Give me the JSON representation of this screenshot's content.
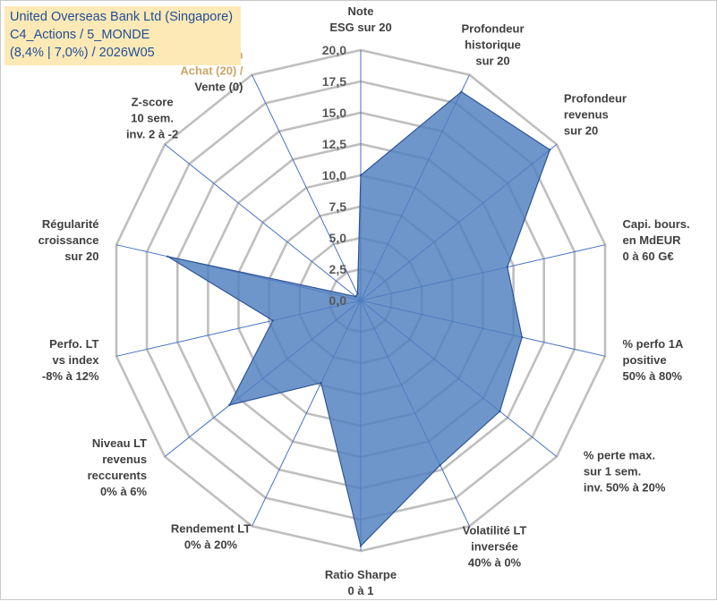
{
  "header": {
    "company": "United Overseas Bank Ltd (Singapore)",
    "portfolio": "C4_Actions / 5_MONDE",
    "stats": "(8,4% | 7,0%) / 2026W05"
  },
  "colors": {
    "fill": "#4f7fbf",
    "stroke": "#2f5597",
    "grid": "#bfbfbf",
    "spoke": "#4472c4",
    "title_bg": "#fde9b5",
    "title_text": "#1f4e9a"
  },
  "chart_data": {
    "type": "radar",
    "title": "",
    "ylim": [
      0,
      20
    ],
    "tick_labels": [
      "0,0",
      "2,5",
      "5,0",
      "7,5",
      "10,0",
      "12,5",
      "15,0",
      "17,5",
      "20,0"
    ],
    "axes": [
      {
        "lines": [
          "Note",
          "ESG sur 20"
        ]
      },
      {
        "lines": [
          "Profondeur",
          "historique",
          "sur 20"
        ]
      },
      {
        "lines": [
          "Profondeur",
          "revenus",
          "sur 20"
        ]
      },
      {
        "lines": [
          "Capi. bours.",
          "en MdEUR",
          "0 à 60 G€"
        ]
      },
      {
        "lines": [
          "% perfo 1A",
          "positive",
          "50% à 80%"
        ]
      },
      {
        "lines": [
          "% perte max.",
          "sur 1 sem.",
          "inv. 50% à 20%"
        ]
      },
      {
        "lines": [
          "Volatilité LT",
          "inversée",
          "40% à 0%"
        ]
      },
      {
        "lines": [
          "Ratio Sharpe",
          "0 à 1"
        ]
      },
      {
        "lines": [
          "Rendement LT",
          "0% à 20%"
        ]
      },
      {
        "lines": [
          "Niveau LT",
          "revenus",
          "reccurents",
          "0% à 6%"
        ]
      },
      {
        "lines": [
          "Perfo. LT",
          "vs index",
          "-8% à 12%"
        ]
      },
      {
        "lines": [
          "Régularité",
          "croissance",
          "sur 20"
        ]
      },
      {
        "lines": [
          "Z-score",
          "10 sem.",
          "inv. 2 à -2"
        ]
      },
      {
        "lines": [
          "Momentum",
          "Achat (20) /",
          "Vente (0)"
        ]
      }
    ],
    "series": [
      {
        "name": "United Overseas Bank Ltd (Singapore)",
        "values": [
          10.0,
          18.5,
          19.3,
          12.0,
          13.2,
          14.2,
          14.6,
          19.6,
          7.3,
          13.4,
          7.2,
          15.8,
          0.5,
          0.6
        ]
      }
    ]
  }
}
